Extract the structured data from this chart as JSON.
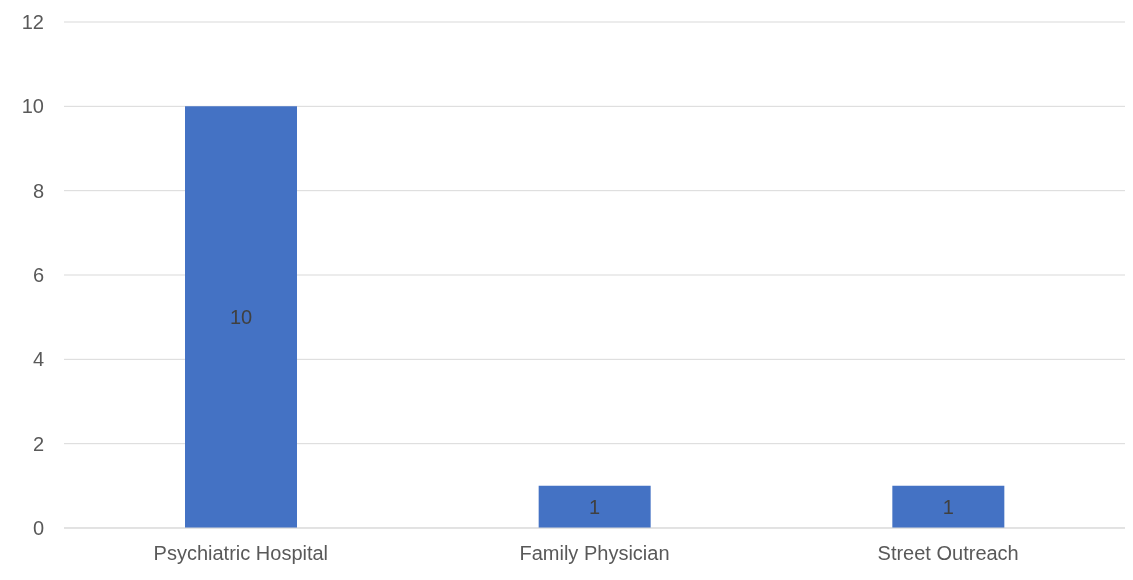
{
  "chart_data": {
    "type": "bar",
    "categories": [
      "Psychiatric Hospital",
      "Family Physician",
      "Street Outreach"
    ],
    "values": [
      10,
      1,
      1
    ],
    "color": "#4472c4",
    "ylim": [
      0,
      12
    ],
    "yticks": [
      0,
      2,
      4,
      6,
      8,
      10,
      12
    ],
    "grid": "y",
    "data_labels": true
  }
}
